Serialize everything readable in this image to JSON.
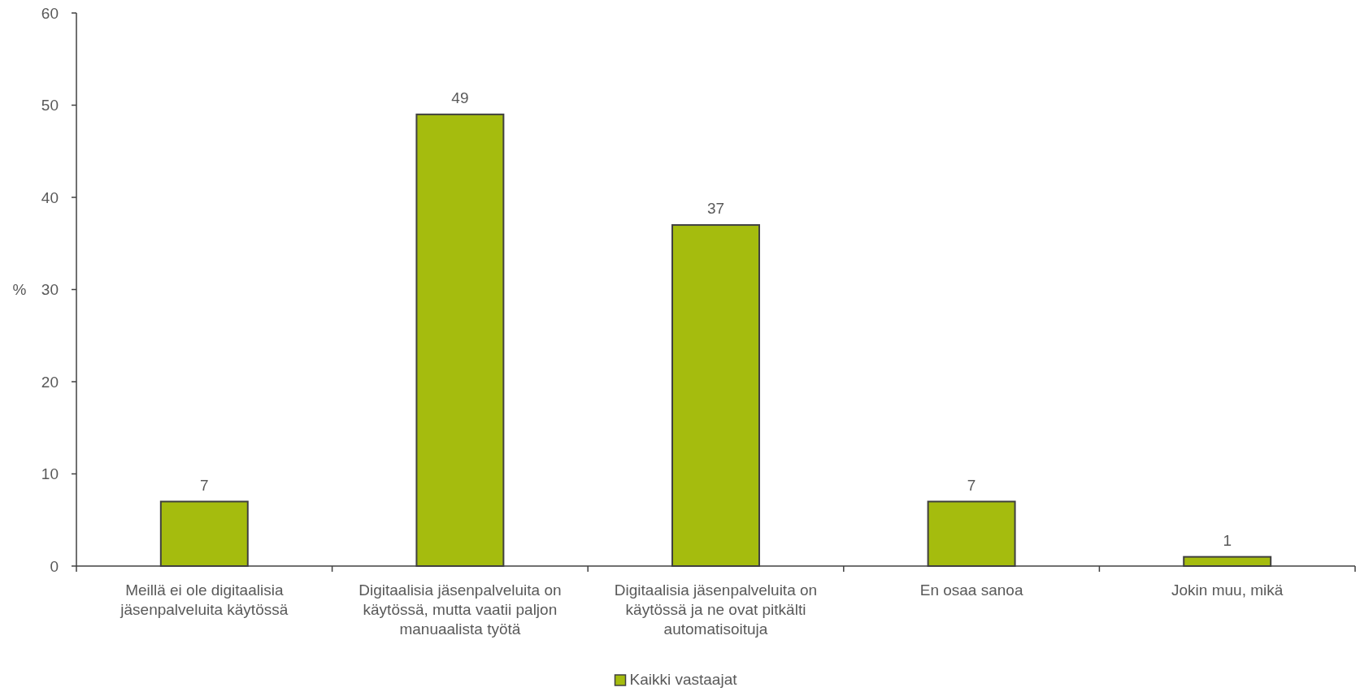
{
  "chart_data": {
    "type": "bar",
    "categories": [
      "Meillä ei ole digitaalisia jäsenpalveluita käytössä",
      "Digitaalisia jäsenpalveluita on käytössä, mutta vaatii paljon manuaalista työtä",
      "Digitaalisia jäsenpalveluita on käytössä ja ne ovat pitkälti automatisoituja",
      "En osaa sanoa",
      "Jokin muu, mikä"
    ],
    "series": [
      {
        "name": "Kaikki vastaajat",
        "color": "#a5bc0e",
        "values": [
          7,
          49,
          37,
          7,
          1
        ]
      }
    ],
    "ylabel": "%",
    "ylim": [
      0,
      60
    ],
    "yticks": [
      0,
      10,
      20,
      30,
      40,
      50,
      60
    ],
    "data_labels": true,
    "legend": "bottom",
    "grid": false
  }
}
